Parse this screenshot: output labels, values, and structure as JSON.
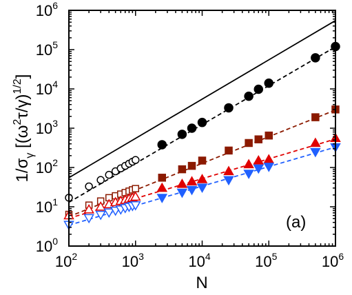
{
  "chart_data": {
    "type": "scatter",
    "title": "",
    "xlabel": "N",
    "ylabel": "1/σ_γ [(ω²τ/γ)^{1/2}]",
    "xscale": "log",
    "yscale": "log",
    "xlim": [
      100,
      1000000
    ],
    "ylim": [
      1,
      1000000
    ],
    "grid": false,
    "legend": "none",
    "annotation": "(a)",
    "x_ticks": [
      {
        "base": "10",
        "exp": "2"
      },
      {
        "base": "10",
        "exp": "3"
      },
      {
        "base": "10",
        "exp": "4"
      },
      {
        "base": "10",
        "exp": "5"
      },
      {
        "base": "10",
        "exp": "6"
      }
    ],
    "y_ticks": [
      {
        "base": "10",
        "exp": "0"
      },
      {
        "base": "10",
        "exp": "1"
      },
      {
        "base": "10",
        "exp": "2"
      },
      {
        "base": "10",
        "exp": "3"
      },
      {
        "base": "10",
        "exp": "4"
      },
      {
        "base": "10",
        "exp": "5"
      },
      {
        "base": "10",
        "exp": "6"
      }
    ],
    "lines": [
      {
        "style": "solid",
        "color": "#000000",
        "x": [
          100,
          1000000
        ],
        "y": [
          55,
          550000
        ]
      },
      {
        "style": "dashed",
        "color": "#000000",
        "x": [
          100,
          1000000
        ],
        "y": [
          13,
          118000
        ]
      },
      {
        "style": "dashed",
        "color": "#8b1a00",
        "x": [
          100,
          1000000
        ],
        "y": [
          5.6,
          2900
        ]
      },
      {
        "style": "dashed",
        "color": "#e00000",
        "x": [
          100,
          1000000
        ],
        "y": [
          5.1,
          530
        ]
      },
      {
        "style": "dashed",
        "color": "#2060ff",
        "x": [
          100,
          1000000
        ],
        "y": [
          3.4,
          330
        ]
      }
    ],
    "series": [
      {
        "marker": "circle-open",
        "color": "#000000",
        "x": [
          100,
          200,
          300,
          400,
          500,
          600,
          700,
          800,
          900,
          1000
        ],
        "y": [
          17,
          33,
          48,
          65,
          80,
          95,
          110,
          125,
          140,
          155
        ]
      },
      {
        "marker": "circle-filled",
        "color": "#000000",
        "x": [
          2500,
          5000,
          7000,
          10000,
          25000,
          50000,
          70000,
          100000,
          500000,
          1000000
        ],
        "y": [
          380,
          700,
          1000,
          1400,
          3300,
          6500,
          9800,
          14000,
          62000,
          120000
        ]
      },
      {
        "marker": "square-open",
        "color": "#8b1a00",
        "x": [
          100,
          200,
          300,
          400,
          500,
          600,
          700,
          800,
          900,
          1000
        ],
        "y": [
          6.4,
          11,
          14,
          17,
          19,
          21,
          23,
          25,
          27,
          29
        ]
      },
      {
        "marker": "square-filled",
        "color": "#8b1a00",
        "x": [
          2500,
          5000,
          7000,
          10000,
          25000,
          50000,
          70000,
          100000,
          500000,
          1000000
        ],
        "y": [
          55,
          90,
          110,
          150,
          270,
          420,
          520,
          650,
          1900,
          3000
        ]
      },
      {
        "marker": "triangle-up-open",
        "color": "#e00000",
        "x": [
          100,
          200,
          300,
          400,
          500,
          600,
          700,
          800,
          900,
          1000
        ],
        "y": [
          6,
          8.5,
          10,
          11.5,
          13,
          14,
          15,
          16,
          17,
          18
        ]
      },
      {
        "marker": "triangle-up-filled",
        "color": "#e00000",
        "x": [
          2500,
          5000,
          7000,
          10000,
          25000,
          50000,
          70000,
          100000,
          500000,
          1000000
        ],
        "y": [
          30,
          38,
          44,
          50,
          80,
          120,
          150,
          160,
          420,
          560
        ]
      },
      {
        "marker": "triangle-down-open",
        "color": "#2060ff",
        "x": [
          100,
          200,
          300,
          400,
          500,
          600,
          700,
          800,
          900,
          1000
        ],
        "y": [
          3.5,
          5.2,
          6.3,
          7.2,
          8,
          8.6,
          9.3,
          10,
          10.5,
          11
        ]
      },
      {
        "marker": "triangle-down-filled",
        "color": "#2060ff",
        "x": [
          2500,
          5000,
          7000,
          10000,
          25000,
          50000,
          70000,
          100000,
          500000,
          1000000
        ],
        "y": [
          17,
          23,
          27,
          31,
          48,
          70,
          95,
          105,
          250,
          330
        ]
      }
    ]
  }
}
